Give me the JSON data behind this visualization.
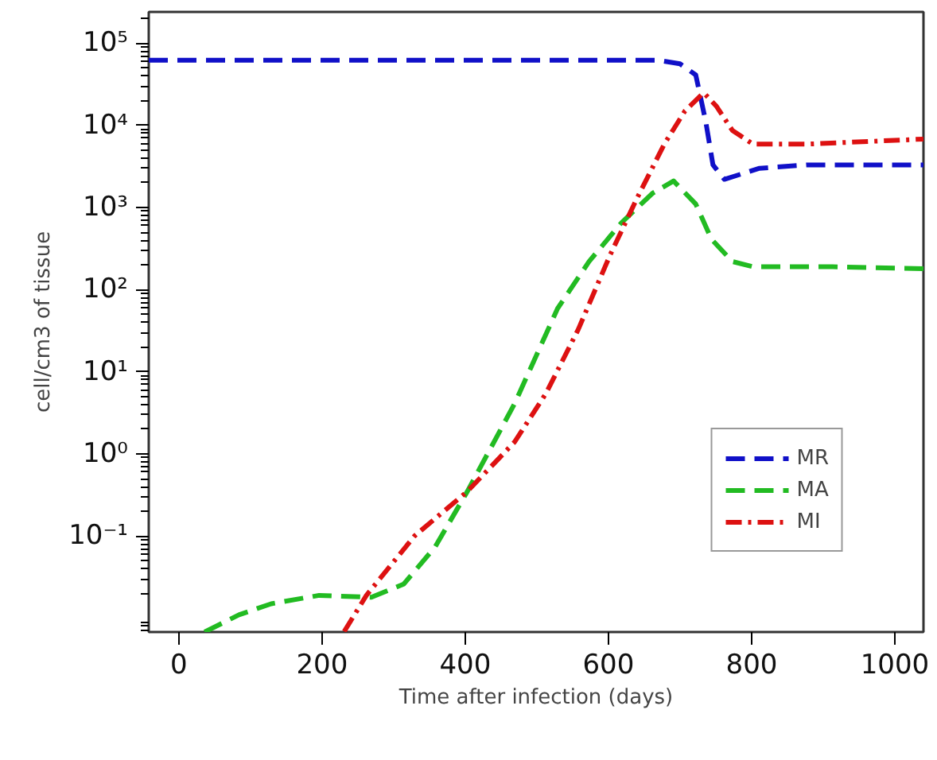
{
  "chart_data": {
    "type": "line",
    "xlabel": "Time after infection (days)",
    "ylabel": "cell/cm3 of tissue",
    "log": "y",
    "grid": false,
    "legend": "bottom right",
    "xlim": [
      -42,
      1040
    ],
    "xticks": [
      0,
      200,
      400,
      600,
      800,
      1000
    ],
    "ylim": [
      0.0068,
      240000
    ],
    "yticks": [
      {
        "value": 0.1,
        "label": "10⁻¹"
      },
      {
        "value": 1,
        "label": "10⁰"
      },
      {
        "value": 10,
        "label": "10¹"
      },
      {
        "value": 100,
        "label": "10²"
      },
      {
        "value": 1000,
        "label": "10³"
      },
      {
        "value": 10000,
        "label": "10⁴"
      },
      {
        "value": 100000,
        "label": "10⁵"
      }
    ],
    "series": [
      {
        "name": "MR",
        "color": "#1010c8",
        "line_style": "dashed",
        "x": [
          -42,
          669,
          700,
          722,
          736,
          746,
          762,
          811,
          877,
          1040
        ],
        "values": [
          62000,
          62000,
          56000,
          41000,
          11000,
          3300,
          2200,
          3000,
          3300,
          3300
        ]
      },
      {
        "name": "MA",
        "color": "#22bb22",
        "line_style": "dashed",
        "x": [
          36,
          84,
          129,
          196,
          269,
          314,
          358,
          403,
          469,
          529,
          573,
          618,
          662,
          691,
          722,
          744,
          773,
          802,
          913,
          1040
        ],
        "values": [
          0.0068,
          0.011,
          0.015,
          0.019,
          0.018,
          0.026,
          0.074,
          0.35,
          4.1,
          59,
          220,
          650,
          1500,
          2100,
          1100,
          410,
          220,
          190,
          190,
          180
        ]
      },
      {
        "name": "MI",
        "color": "#dd1111",
        "line_style": "dashdot",
        "x": [
          231,
          262,
          329,
          403,
          469,
          513,
          558,
          602,
          640,
          678,
          707,
          733,
          751,
          773,
          802,
          877,
          1040
        ],
        "values": [
          0.0069,
          0.019,
          0.1,
          0.35,
          1.4,
          5.5,
          33,
          260,
          1300,
          5900,
          15000,
          25000,
          17000,
          8700,
          5900,
          5900,
          6800
        ]
      }
    ]
  }
}
